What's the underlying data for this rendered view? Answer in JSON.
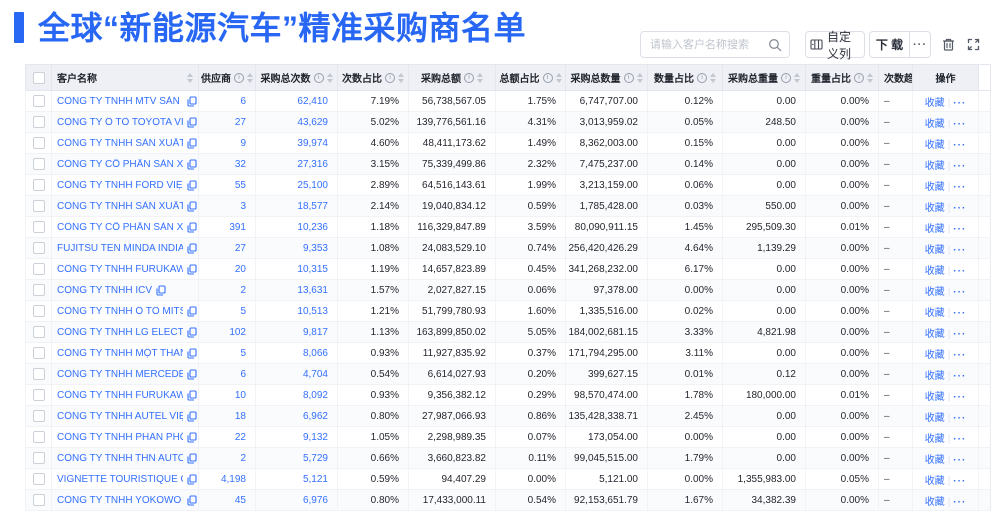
{
  "page": {
    "title": "全球“新能源汽车”精准采购商名单"
  },
  "toolbar": {
    "search_placeholder": "请输入客户名称搜索",
    "customize_columns_label": "自定义列",
    "download_label": "下 载",
    "more_label": "···"
  },
  "colors": {
    "accent": "#2767f4",
    "link_blue": "#3370ff",
    "header_bg": "#eef0f6"
  },
  "table": {
    "columns": [
      {
        "key": "name",
        "label": "客户名称",
        "info": false,
        "sort": true
      },
      {
        "key": "suppliers",
        "label": "供应商",
        "info": true,
        "sort": true
      },
      {
        "key": "total_count",
        "label": "采购总次数",
        "info": true,
        "sort": true
      },
      {
        "key": "count_pct",
        "label": "次数占比",
        "info": true,
        "sort": true
      },
      {
        "key": "total_amount",
        "label": "采购总额",
        "info": true,
        "sort": true
      },
      {
        "key": "amount_pct",
        "label": "总额占比",
        "info": true,
        "sort": true
      },
      {
        "key": "total_qty",
        "label": "采购总数量",
        "info": true,
        "sort": true
      },
      {
        "key": "qty_pct",
        "label": "数量占比",
        "info": true,
        "sort": true
      },
      {
        "key": "total_weight",
        "label": "采购总重量",
        "info": true,
        "sort": true
      },
      {
        "key": "weight_pct",
        "label": "重量占比",
        "info": true,
        "sort": true
      },
      {
        "key": "trend",
        "label": "次数趋势",
        "info": false,
        "sort": false
      },
      {
        "key": "actions",
        "label": "操作",
        "info": false,
        "sort": false
      }
    ],
    "action_labels": {
      "favorite": "收藏",
      "more": "···"
    },
    "rows": [
      {
        "name": "CÔNG TY TNHH MTV SẢN XUẤ...",
        "suppliers": "6",
        "total_count": "62,410",
        "count_pct": "7.19%",
        "total_amount": "56,738,567.05",
        "amount_pct": "1.75%",
        "total_qty": "6,747,707.00",
        "qty_pct": "0.12%",
        "total_weight": "0.00",
        "weight_pct": "0.00%",
        "trend": "–"
      },
      {
        "name": "CÔNG TY Ô TÔ TOYOTA VIỆT ...",
        "suppliers": "27",
        "total_count": "43,629",
        "count_pct": "5.02%",
        "total_amount": "139,776,561.16",
        "amount_pct": "4.31%",
        "total_qty": "3,013,959.02",
        "qty_pct": "0.05%",
        "total_weight": "248.50",
        "weight_pct": "0.00%",
        "trend": "–"
      },
      {
        "name": "CÔNG TY TNHH SẢN XUẤT VÀ ...",
        "suppliers": "9",
        "total_count": "39,974",
        "count_pct": "4.60%",
        "total_amount": "48,411,173.62",
        "amount_pct": "1.49%",
        "total_qty": "8,362,003.00",
        "qty_pct": "0.15%",
        "total_weight": "0.00",
        "weight_pct": "0.00%",
        "trend": "–"
      },
      {
        "name": "CÔNG TY CỔ PHẦN SẢN XUẤT...",
        "suppliers": "32",
        "total_count": "27,316",
        "count_pct": "3.15%",
        "total_amount": "75,339,499.86",
        "amount_pct": "2.32%",
        "total_qty": "7,475,237.00",
        "qty_pct": "0.14%",
        "total_weight": "0.00",
        "weight_pct": "0.00%",
        "trend": "–"
      },
      {
        "name": "CÔNG TY TNHH FORD VIỆT NAM",
        "suppliers": "55",
        "total_count": "25,100",
        "count_pct": "2.89%",
        "total_amount": "64,516,143.61",
        "amount_pct": "1.99%",
        "total_qty": "3,213,159.00",
        "qty_pct": "0.06%",
        "total_weight": "0.00",
        "weight_pct": "0.00%",
        "trend": "–"
      },
      {
        "name": "CÔNG TY TNHH SẢN XUẤT VÀ ...",
        "suppliers": "3",
        "total_count": "18,577",
        "count_pct": "2.14%",
        "total_amount": "19,040,834.12",
        "amount_pct": "0.59%",
        "total_qty": "1,785,428.00",
        "qty_pct": "0.03%",
        "total_weight": "550.00",
        "weight_pct": "0.00%",
        "trend": "–"
      },
      {
        "name": "CÔNG TY CỔ PHẦN SẢN XUẤT...",
        "suppliers": "391",
        "total_count": "10,236",
        "count_pct": "1.18%",
        "total_amount": "116,329,847.89",
        "amount_pct": "3.59%",
        "total_qty": "80,090,911.15",
        "qty_pct": "1.45%",
        "total_weight": "295,509.30",
        "weight_pct": "0.01%",
        "trend": "–"
      },
      {
        "name": "FUJITSU TEN MINDA INDIA PVT...",
        "suppliers": "27",
        "total_count": "9,353",
        "count_pct": "1.08%",
        "total_amount": "24,083,529.10",
        "amount_pct": "0.74%",
        "total_qty": "256,420,426.29",
        "qty_pct": "4.64%",
        "total_weight": "1,139.29",
        "weight_pct": "0.00%",
        "trend": "–"
      },
      {
        "name": "CÔNG TY TNHH FURUKAWA A...",
        "suppliers": "20",
        "total_count": "10,315",
        "count_pct": "1.19%",
        "total_amount": "14,657,823.89",
        "amount_pct": "0.45%",
        "total_qty": "341,268,232.00",
        "qty_pct": "6.17%",
        "total_weight": "0.00",
        "weight_pct": "0.00%",
        "trend": "–"
      },
      {
        "name": "CÔNG TY TNHH ICV",
        "suppliers": "2",
        "total_count": "13,631",
        "count_pct": "1.57%",
        "total_amount": "2,027,827.15",
        "amount_pct": "0.06%",
        "total_qty": "97,378.00",
        "qty_pct": "0.00%",
        "total_weight": "0.00",
        "weight_pct": "0.00%",
        "trend": "–"
      },
      {
        "name": "CÔNG TY TNHH Ô TÔ MITSUBI...",
        "suppliers": "5",
        "total_count": "10,513",
        "count_pct": "1.21%",
        "total_amount": "51,799,780.93",
        "amount_pct": "1.60%",
        "total_qty": "1,335,516.00",
        "qty_pct": "0.02%",
        "total_weight": "0.00",
        "weight_pct": "0.00%",
        "trend": "–"
      },
      {
        "name": "CÔNG TY TNHH LG ELECTRON...",
        "suppliers": "102",
        "total_count": "9,817",
        "count_pct": "1.13%",
        "total_amount": "163,899,850.02",
        "amount_pct": "5.05%",
        "total_qty": "184,002,681.15",
        "qty_pct": "3.33%",
        "total_weight": "4,821.98",
        "weight_pct": "0.00%",
        "trend": "–"
      },
      {
        "name": "CÔNG TY TNHH MỘT THÀNH V...",
        "suppliers": "5",
        "total_count": "8,066",
        "count_pct": "0.93%",
        "total_amount": "11,927,835.92",
        "amount_pct": "0.37%",
        "total_qty": "171,794,295.00",
        "qty_pct": "3.11%",
        "total_weight": "0.00",
        "weight_pct": "0.00%",
        "trend": "–"
      },
      {
        "name": "CÔNG TY TNHH MERCEDES–B...",
        "suppliers": "6",
        "total_count": "4,704",
        "count_pct": "0.54%",
        "total_amount": "6,614,027.93",
        "amount_pct": "0.20%",
        "total_qty": "399,627.15",
        "qty_pct": "0.01%",
        "total_weight": "0.12",
        "weight_pct": "0.00%",
        "trend": "–"
      },
      {
        "name": "CÔNG TY TNHH FURUKAWA A...",
        "suppliers": "10",
        "total_count": "8,092",
        "count_pct": "0.93%",
        "total_amount": "9,356,382.12",
        "amount_pct": "0.29%",
        "total_qty": "98,570,474.00",
        "qty_pct": "1.78%",
        "total_weight": "180,000.00",
        "weight_pct": "0.01%",
        "trend": "–"
      },
      {
        "name": "CÔNG TY TNHH AUTEL VIỆT N...",
        "suppliers": "18",
        "total_count": "6,962",
        "count_pct": "0.80%",
        "total_amount": "27,987,066.93",
        "amount_pct": "0.86%",
        "total_qty": "135,428,338.71",
        "qty_pct": "2.45%",
        "total_weight": "0.00",
        "weight_pct": "0.00%",
        "trend": "–"
      },
      {
        "name": "CÔNG TY TNHH PHÂN PHỐI T...",
        "suppliers": "22",
        "total_count": "9,132",
        "count_pct": "1.05%",
        "total_amount": "2,298,989.35",
        "amount_pct": "0.07%",
        "total_qty": "173,054.00",
        "qty_pct": "0.00%",
        "total_weight": "0.00",
        "weight_pct": "0.00%",
        "trend": "–"
      },
      {
        "name": "CÔNG TY TNHH THN AUTOPAR...",
        "suppliers": "2",
        "total_count": "5,729",
        "count_pct": "0.66%",
        "total_amount": "3,660,823.82",
        "amount_pct": "0.11%",
        "total_qty": "99,045,515.00",
        "qty_pct": "1.79%",
        "total_weight": "0.00",
        "weight_pct": "0.00%",
        "trend": "–"
      },
      {
        "name": "VIGNETTE TOURISTIQUE G UNI...",
        "suppliers": "4,198",
        "total_count": "5,121",
        "count_pct": "0.59%",
        "total_amount": "94,407.29",
        "amount_pct": "0.00%",
        "total_qty": "5,121.00",
        "qty_pct": "0.00%",
        "total_weight": "1,355,983.00",
        "weight_pct": "0.05%",
        "trend": "–"
      },
      {
        "name": "CÔNG TY TNHH YOKOWO VIỆT...",
        "suppliers": "45",
        "total_count": "6,976",
        "count_pct": "0.80%",
        "total_amount": "17,433,000.11",
        "amount_pct": "0.54%",
        "total_qty": "92,153,651.79",
        "qty_pct": "1.67%",
        "total_weight": "34,382.39",
        "weight_pct": "0.00%",
        "trend": "–"
      }
    ]
  }
}
